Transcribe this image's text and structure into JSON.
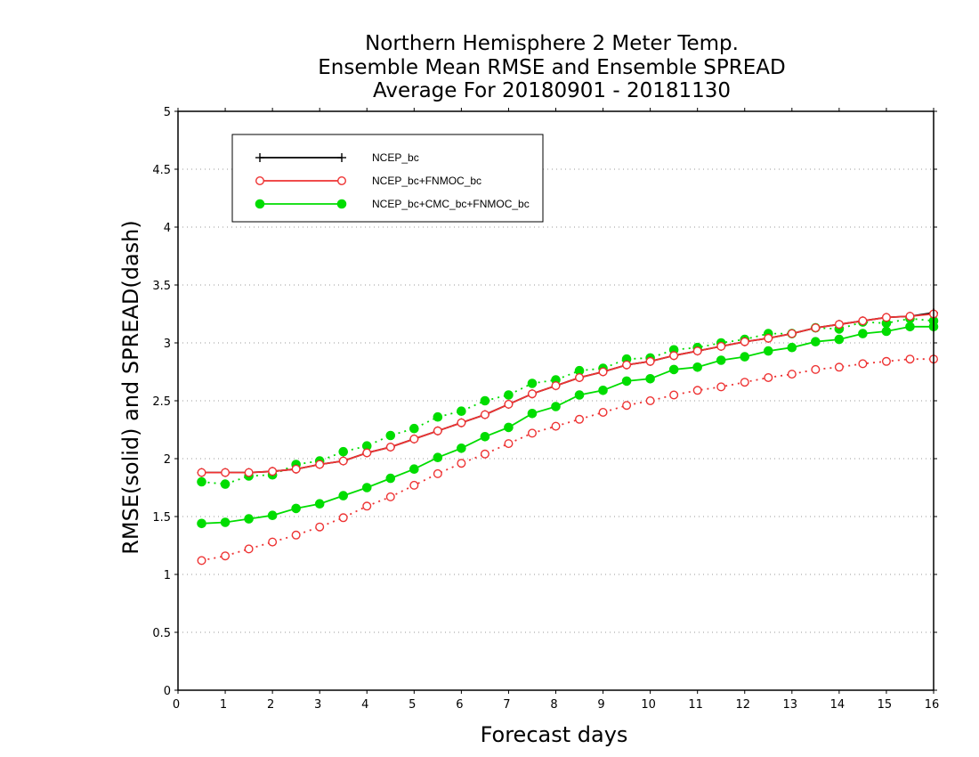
{
  "chart_data": {
    "type": "line",
    "title_lines": [
      "Northern Hemisphere 2 Meter Temp.",
      "Ensemble Mean RMSE and Ensemble SPREAD",
      "Average For 20180901 - 20181130"
    ],
    "xlabel": "Forecast days",
    "ylabel": "RMSE(solid) and SPREAD(dash)",
    "xlim": [
      0,
      16
    ],
    "ylim": [
      0,
      5
    ],
    "x_ticks": [
      0,
      1,
      2,
      3,
      4,
      5,
      6,
      7,
      8,
      9,
      10,
      11,
      12,
      13,
      14,
      15,
      16
    ],
    "y_ticks": [
      0,
      0.5,
      1,
      1.5,
      2,
      2.5,
      3,
      3.5,
      4,
      4.5,
      5
    ],
    "y_tick_labels": [
      "0",
      "0.5",
      "1",
      "1.5",
      "2",
      "2.5",
      "3",
      "3.5",
      "4",
      "4.5",
      "5"
    ],
    "grid": "horizontal dotted",
    "legend_position": "top-left",
    "x": [
      0.5,
      1,
      1.5,
      2,
      2.5,
      3,
      3.5,
      4,
      4.5,
      5,
      5.5,
      6,
      6.5,
      7,
      7.5,
      8,
      8.5,
      9,
      9.5,
      10,
      10.5,
      11,
      11.5,
      12,
      12.5,
      13,
      13.5,
      14,
      14.5,
      15,
      15.5,
      16
    ],
    "series": [
      {
        "name": "NCEP_bc",
        "color": "#000000",
        "marker": "plus",
        "rmse": [
          1.88,
          1.88,
          1.88,
          1.89,
          1.91,
          1.95,
          1.98,
          2.05,
          2.1,
          2.17,
          2.24,
          2.31,
          2.38,
          2.47,
          2.56,
          2.63,
          2.7,
          2.75,
          2.81,
          2.84,
          2.89,
          2.93,
          2.97,
          3.01,
          3.04,
          3.08,
          3.13,
          3.16,
          3.19,
          3.22,
          3.23,
          3.26
        ],
        "spread": null
      },
      {
        "name": "NCEP_bc+FNMOC_bc",
        "color": "#ee3333",
        "marker": "open-circle",
        "rmse": [
          1.88,
          1.88,
          1.88,
          1.89,
          1.91,
          1.95,
          1.98,
          2.05,
          2.1,
          2.17,
          2.24,
          2.31,
          2.38,
          2.47,
          2.56,
          2.63,
          2.7,
          2.75,
          2.81,
          2.84,
          2.89,
          2.93,
          2.97,
          3.01,
          3.04,
          3.08,
          3.13,
          3.16,
          3.19,
          3.22,
          3.23,
          3.25
        ],
        "spread": [
          1.12,
          1.16,
          1.22,
          1.28,
          1.34,
          1.41,
          1.49,
          1.59,
          1.67,
          1.77,
          1.87,
          1.96,
          2.04,
          2.13,
          2.22,
          2.28,
          2.34,
          2.4,
          2.46,
          2.5,
          2.55,
          2.59,
          2.62,
          2.66,
          2.7,
          2.73,
          2.77,
          2.79,
          2.82,
          2.84,
          2.86,
          2.86
        ]
      },
      {
        "name": "NCEP_bc+CMC_bc+FNMOC_bc",
        "color": "#00dd00",
        "marker": "filled-circle",
        "rmse": [
          1.44,
          1.45,
          1.48,
          1.51,
          1.57,
          1.61,
          1.68,
          1.75,
          1.83,
          1.91,
          2.01,
          2.09,
          2.19,
          2.27,
          2.39,
          2.45,
          2.55,
          2.59,
          2.67,
          2.69,
          2.77,
          2.79,
          2.85,
          2.88,
          2.93,
          2.96,
          3.01,
          3.03,
          3.08,
          3.1,
          3.14,
          3.14
        ],
        "spread": [
          1.8,
          1.78,
          1.85,
          1.86,
          1.95,
          1.98,
          2.06,
          2.11,
          2.2,
          2.26,
          2.36,
          2.41,
          2.5,
          2.55,
          2.65,
          2.68,
          2.76,
          2.78,
          2.86,
          2.87,
          2.94,
          2.96,
          3.0,
          3.03,
          3.08,
          3.08,
          3.13,
          3.12,
          3.18,
          3.17,
          3.21,
          3.19
        ]
      }
    ]
  }
}
